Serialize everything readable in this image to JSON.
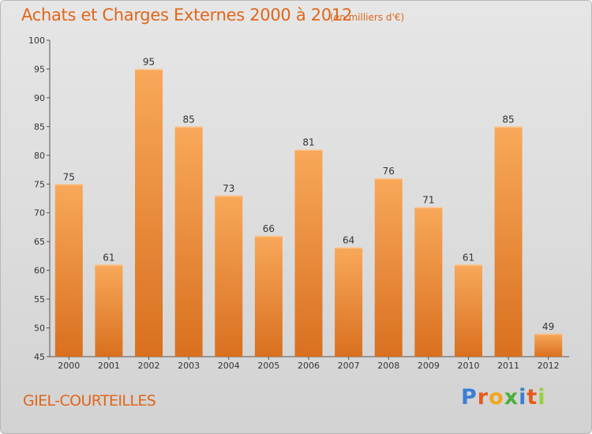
{
  "header": {
    "title": "Achats et Charges Externes 2000 à 2012",
    "subtitle": "(en milliers d'€)"
  },
  "footer": {
    "commune": "GIEL-COURTEILLES",
    "brand": "Proxiti",
    "brand_letters": [
      {
        "ch": "P",
        "color": "#3a7fd5"
      },
      {
        "ch": "r",
        "color": "#e85a1c"
      },
      {
        "ch": "o",
        "color": "#f2a51a"
      },
      {
        "ch": "x",
        "color": "#4caf3a"
      },
      {
        "ch": "i",
        "color": "#3a7fd5"
      },
      {
        "ch": "t",
        "color": "#e85a1c"
      },
      {
        "ch": "i",
        "color": "#9bcf3a"
      }
    ]
  },
  "colors": {
    "accent": "#e0661a",
    "bar_top": "#f8a85a",
    "bar_bottom": "#d9701f"
  },
  "chart_data": {
    "type": "bar",
    "title": "Achats et Charges Externes 2000 à 2012",
    "subtitle": "(en milliers d'€)",
    "categories": [
      "2000",
      "2001",
      "2002",
      "2003",
      "2004",
      "2005",
      "2006",
      "2007",
      "2008",
      "2009",
      "2010",
      "2011",
      "2012"
    ],
    "values": [
      75,
      61,
      95,
      85,
      73,
      66,
      81,
      64,
      76,
      71,
      61,
      85,
      49
    ],
    "ylim": [
      45,
      100
    ],
    "yticks": [
      45,
      50,
      55,
      60,
      65,
      70,
      75,
      80,
      85,
      90,
      95,
      100
    ],
    "grid": false,
    "xlabel": "",
    "ylabel": ""
  }
}
